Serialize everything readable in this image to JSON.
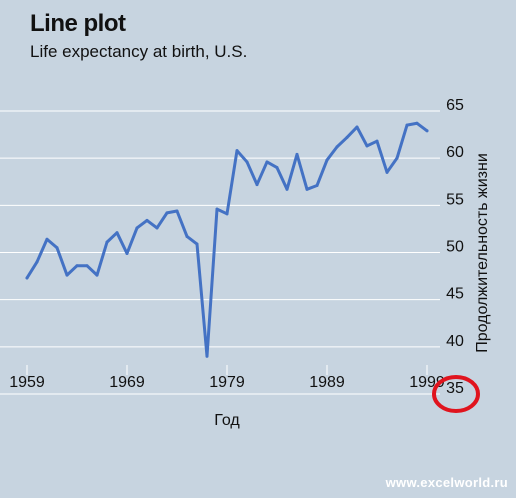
{
  "header": {
    "title": "Line plot",
    "subtitle": "Life expectancy at birth, U.S."
  },
  "footer": {
    "watermark": "www.excelworld.ru"
  },
  "colors": {
    "background": "#c7d4e0",
    "line": "#4472c4",
    "gridline": "#ffffff",
    "highlight": "#e0141e"
  },
  "chart_data": {
    "type": "line",
    "title": "Line plot",
    "subtitle": "Life expectancy at birth, U.S.",
    "xlabel": "Год",
    "ylabel": "Продолжительность жизни",
    "x_ticks": [
      "1959",
      "1969",
      "1979",
      "1989",
      "1999"
    ],
    "y_ticks": [
      "65",
      "60",
      "55",
      "50",
      "45",
      "40",
      "35"
    ],
    "xlim": [
      1959,
      1999
    ],
    "ylim": [
      35,
      65
    ],
    "highlighted_tick": "35",
    "grid": "horizontal",
    "x": [
      1959,
      1960,
      1961,
      1962,
      1963,
      1964,
      1965,
      1966,
      1967,
      1968,
      1969,
      1970,
      1971,
      1972,
      1973,
      1974,
      1975,
      1976,
      1977,
      1978,
      1979,
      1980,
      1981,
      1982,
      1983,
      1984,
      1985,
      1986,
      1987,
      1988,
      1989,
      1990,
      1991,
      1992,
      1993,
      1994,
      1995,
      1996,
      1997,
      1998,
      1999
    ],
    "series": [
      {
        "values": [
          47.3,
          49.0,
          51.4,
          50.5,
          47.6,
          48.6,
          48.6,
          47.6,
          51.1,
          52.1,
          49.9,
          52.6,
          53.4,
          52.6,
          54.2,
          54.4,
          51.7,
          50.9,
          39.0,
          54.6,
          54.1,
          60.8,
          59.6,
          57.2,
          59.6,
          59.0,
          56.7,
          60.4,
          56.7,
          57.1,
          59.8,
          61.2,
          62.2,
          63.3,
          61.3,
          61.8,
          58.5,
          60.0,
          63.5,
          63.7,
          62.9
        ]
      }
    ]
  }
}
